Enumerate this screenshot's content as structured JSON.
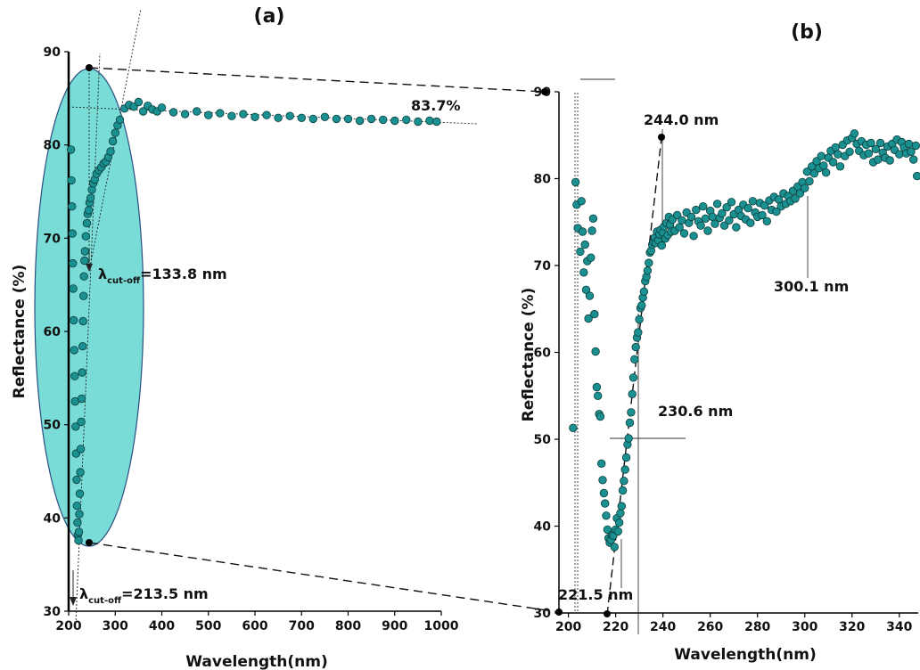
{
  "chart_data": [
    {
      "panel_label": "(a)",
      "type": "scatter",
      "xlabel": "Wavelength(nm)",
      "ylabel": "Reflectance (%)",
      "xlim": [
        200,
        1000
      ],
      "ylim": [
        30,
        90
      ],
      "xticks": [
        200,
        300,
        400,
        500,
        600,
        700,
        800,
        900,
        1000
      ],
      "yticks": [
        30,
        40,
        50,
        60,
        70,
        80,
        90
      ],
      "marker_color": "#1a9090",
      "highlight_color": "#7adcd6",
      "series": [
        {
          "values": [
            [
              205,
              79.5
            ],
            [
              206,
              76.2
            ],
            [
              207,
              73.4
            ],
            [
              208,
              70.5
            ],
            [
              209,
              67.3
            ],
            [
              210,
              64.6
            ],
            [
              211,
              61.2
            ],
            [
              212,
              58.0
            ],
            [
              213,
              55.2
            ],
            [
              214,
              52.5
            ],
            [
              215,
              49.8
            ],
            [
              216,
              46.9
            ],
            [
              217,
              44.1
            ],
            [
              218,
              41.3
            ],
            [
              219,
              39.5
            ],
            [
              220,
              38.2
            ],
            [
              221,
              37.6
            ],
            [
              222,
              38.5
            ],
            [
              223,
              40.4
            ],
            [
              224,
              42.6
            ],
            [
              225,
              44.9
            ],
            [
              226,
              47.4
            ],
            [
              227,
              50.3
            ],
            [
              228,
              52.8
            ],
            [
              229,
              55.6
            ],
            [
              230,
              58.4
            ],
            [
              231,
              61.1
            ],
            [
              232,
              63.8
            ],
            [
              233,
              65.9
            ],
            [
              234,
              67.6
            ],
            [
              235,
              68.6
            ],
            [
              237,
              70.2
            ],
            [
              239,
              71.6
            ],
            [
              241,
              72.6
            ],
            [
              243,
              73.0
            ],
            [
              245,
              73.8
            ],
            [
              247,
              74.3
            ],
            [
              250,
              75.2
            ],
            [
              253,
              75.9
            ],
            [
              256,
              76.3
            ],
            [
              260,
              76.9
            ],
            [
              265,
              77.3
            ],
            [
              270,
              77.6
            ],
            [
              275,
              78.0
            ],
            [
              280,
              78.2
            ],
            [
              285,
              78.7
            ],
            [
              290,
              79.3
            ],
            [
              295,
              80.4
            ],
            [
              300,
              81.3
            ],
            [
              305,
              82.1
            ],
            [
              310,
              82.7
            ],
            [
              320,
              83.9
            ],
            [
              330,
              84.3
            ],
            [
              340,
              84.1
            ],
            [
              350,
              84.6
            ],
            [
              360,
              83.6
            ],
            [
              370,
              84.2
            ],
            [
              380,
              83.8
            ],
            [
              390,
              83.6
            ],
            [
              400,
              84.0
            ],
            [
              425,
              83.5
            ],
            [
              450,
              83.3
            ],
            [
              475,
              83.6
            ],
            [
              500,
              83.2
            ],
            [
              525,
              83.4
            ],
            [
              550,
              83.1
            ],
            [
              575,
              83.3
            ],
            [
              600,
              83.0
            ],
            [
              625,
              83.2
            ],
            [
              650,
              82.9
            ],
            [
              675,
              83.1
            ],
            [
              700,
              82.9
            ],
            [
              725,
              82.8
            ],
            [
              750,
              83.0
            ],
            [
              775,
              82.8
            ],
            [
              800,
              82.8
            ],
            [
              825,
              82.6
            ],
            [
              850,
              82.8
            ],
            [
              875,
              82.7
            ],
            [
              900,
              82.6
            ],
            [
              925,
              82.7
            ],
            [
              950,
              82.5
            ],
            [
              975,
              82.6
            ],
            [
              990,
              82.5
            ]
          ]
        }
      ],
      "annotations": {
        "plateau": "83.7%",
        "cutoff_1_symbol": "λ",
        "cutoff_1_sub": "cut-off",
        "cutoff_1_value": "=133.8 nm",
        "cutoff_2_symbol": "λ",
        "cutoff_2_sub": "cut-off",
        "cutoff_2_value": "=213.5 nm"
      }
    },
    {
      "panel_label": "(b)",
      "type": "scatter",
      "xlabel": "Wavelength(nm)",
      "ylabel": "Reflectance (%)",
      "xlim": [
        196,
        348
      ],
      "ylim": [
        30,
        90
      ],
      "xticks": [
        200,
        220,
        240,
        260,
        280,
        300,
        320,
        340
      ],
      "yticks": [
        30,
        40,
        50,
        60,
        70,
        80,
        90
      ],
      "marker_color": "#1a9090",
      "series": [
        {
          "values": [
            [
              202,
              51.3
            ],
            [
              203,
              79.6
            ],
            [
              203.5,
              77.0
            ],
            [
              204,
              74.3
            ],
            [
              205,
              71.6
            ],
            [
              205.5,
              77.4
            ],
            [
              206,
              73.9
            ],
            [
              206.5,
              69.2
            ],
            [
              207,
              72.4
            ],
            [
              207.5,
              67.2
            ],
            [
              208,
              70.5
            ],
            [
              208.5,
              63.9
            ],
            [
              209,
              66.5
            ],
            [
              209.5,
              70.9
            ],
            [
              210,
              74.0
            ],
            [
              210.5,
              75.4
            ],
            [
              211,
              64.4
            ],
            [
              211.5,
              60.1
            ],
            [
              212,
              56.0
            ],
            [
              212.5,
              55.0
            ],
            [
              213,
              52.9
            ],
            [
              213.5,
              52.6
            ],
            [
              214,
              47.2
            ],
            [
              214.5,
              45.3
            ],
            [
              215,
              43.8
            ],
            [
              215.5,
              42.6
            ],
            [
              216,
              41.2
            ],
            [
              216.5,
              39.6
            ],
            [
              217,
              38.6
            ],
            [
              217.5,
              38.1
            ],
            [
              218,
              38.4
            ],
            [
              218.5,
              39.0
            ],
            [
              219,
              38.9
            ],
            [
              219.5,
              37.6
            ],
            [
              220,
              39.6
            ],
            [
              220.5,
              40.9
            ],
            [
              221,
              39.4
            ],
            [
              221.5,
              40.4
            ],
            [
              222,
              41.5
            ],
            [
              222.5,
              42.3
            ],
            [
              223,
              44.1
            ],
            [
              223.5,
              45.2
            ],
            [
              224,
              46.5
            ],
            [
              224.5,
              47.9
            ],
            [
              225,
              49.4
            ],
            [
              225.5,
              50.1
            ],
            [
              226,
              51.9
            ],
            [
              226.5,
              53.1
            ],
            [
              227,
              55.2
            ],
            [
              227.5,
              57.1
            ],
            [
              228,
              59.2
            ],
            [
              228.5,
              60.6
            ],
            [
              229,
              61.7
            ],
            [
              229.5,
              62.3
            ],
            [
              230,
              63.8
            ],
            [
              230.5,
              65.1
            ],
            [
              231,
              65.4
            ],
            [
              231.5,
              66.3
            ],
            [
              232,
              67.0
            ],
            [
              232.5,
              68.2
            ],
            [
              233,
              68.7
            ],
            [
              233.5,
              69.4
            ],
            [
              234,
              70.3
            ],
            [
              234.5,
              71.5
            ],
            [
              235,
              71.7
            ],
            [
              235.5,
              72.4
            ],
            [
              236,
              72.7
            ],
            [
              236.5,
              73.2
            ],
            [
              237,
              72.6
            ],
            [
              237.5,
              73.9
            ],
            [
              238,
              72.9
            ],
            [
              238.5,
              73.6
            ],
            [
              239,
              74.1
            ],
            [
              239.5,
              72.3
            ],
            [
              240,
              73.8
            ],
            [
              240.5,
              74.5
            ],
            [
              241,
              73.1
            ],
            [
              241.5,
              74.9
            ],
            [
              242,
              73.5
            ],
            [
              242.5,
              75.6
            ],
            [
              243,
              74.7
            ],
            [
              243.5,
              73.9
            ],
            [
              244,
              75.3
            ],
            [
              245,
              74.0
            ],
            [
              246,
              75.8
            ],
            [
              247,
              74.4
            ],
            [
              248,
              75.2
            ],
            [
              249,
              73.7
            ],
            [
              250,
              76.1
            ],
            [
              251,
              74.9
            ],
            [
              252,
              75.6
            ],
            [
              253,
              73.4
            ],
            [
              254,
              76.4
            ],
            [
              255,
              75.1
            ],
            [
              256,
              74.6
            ],
            [
              257,
              76.8
            ],
            [
              258,
              75.4
            ],
            [
              259,
              74.0
            ],
            [
              260,
              76.3
            ],
            [
              261,
              75.6
            ],
            [
              262,
              74.8
            ],
            [
              263,
              77.1
            ],
            [
              264,
              75.5
            ],
            [
              265,
              76.0
            ],
            [
              266,
              74.6
            ],
            [
              267,
              76.7
            ],
            [
              268,
              75.2
            ],
            [
              269,
              77.3
            ],
            [
              270,
              75.9
            ],
            [
              271,
              74.4
            ],
            [
              272,
              76.4
            ],
            [
              273,
              75.7
            ],
            [
              274,
              77.0
            ],
            [
              275,
              75.3
            ],
            [
              276,
              76.6
            ],
            [
              277,
              74.9
            ],
            [
              278,
              77.4
            ],
            [
              279,
              76.1
            ],
            [
              280,
              75.6
            ],
            [
              281,
              77.2
            ],
            [
              282,
              75.8
            ],
            [
              283,
              76.9
            ],
            [
              284,
              75.1
            ],
            [
              285,
              77.5
            ],
            [
              286,
              76.4
            ],
            [
              287,
              77.9
            ],
            [
              288,
              76.2
            ],
            [
              289,
              77.6
            ],
            [
              290,
              76.8
            ],
            [
              291,
              78.3
            ],
            [
              292,
              77.1
            ],
            [
              293,
              78.0
            ],
            [
              294,
              77.4
            ],
            [
              295,
              78.6
            ],
            [
              296,
              77.7
            ],
            [
              297,
              79.1
            ],
            [
              298,
              78.3
            ],
            [
              299,
              79.6
            ],
            [
              300,
              78.9
            ],
            [
              301,
              80.8
            ],
            [
              302,
              79.7
            ],
            [
              303,
              81.4
            ],
            [
              304,
              80.6
            ],
            [
              305,
              82.0
            ],
            [
              306,
              81.2
            ],
            [
              307,
              82.6
            ],
            [
              308,
              81.5
            ],
            [
              309,
              80.7
            ],
            [
              310,
              82.4
            ],
            [
              311,
              83.2
            ],
            [
              312,
              81.9
            ],
            [
              313,
              83.6
            ],
            [
              314,
              82.8
            ],
            [
              315,
              81.4
            ],
            [
              316,
              83.9
            ],
            [
              317,
              82.6
            ],
            [
              318,
              84.4
            ],
            [
              319,
              83.1
            ],
            [
              320,
              84.7
            ],
            [
              321,
              85.2
            ],
            [
              322,
              84.0
            ],
            [
              323,
              83.2
            ],
            [
              324,
              84.3
            ],
            [
              325,
              82.7
            ],
            [
              326,
              83.9
            ],
            [
              327,
              82.9
            ],
            [
              328,
              84.1
            ],
            [
              329,
              81.9
            ],
            [
              330,
              83.4
            ],
            [
              331,
              82.2
            ],
            [
              332,
              84.1
            ],
            [
              333,
              83.0
            ],
            [
              334,
              82.4
            ],
            [
              335,
              83.7
            ],
            [
              336,
              82.1
            ],
            [
              337,
              84.0
            ],
            [
              338,
              83.3
            ],
            [
              339,
              84.5
            ],
            [
              340,
              82.8
            ],
            [
              341,
              84.2
            ],
            [
              342,
              83.6
            ],
            [
              343,
              82.9
            ],
            [
              344,
              84.0
            ],
            [
              345,
              83.1
            ],
            [
              346,
              82.2
            ],
            [
              347,
              83.8
            ],
            [
              347.5,
              80.3
            ]
          ]
        }
      ],
      "annotations": {
        "label_1": "244.0 nm",
        "label_2": "300.1 nm",
        "label_3": "230.6 nm",
        "label_4": "221.5 nm"
      }
    }
  ]
}
